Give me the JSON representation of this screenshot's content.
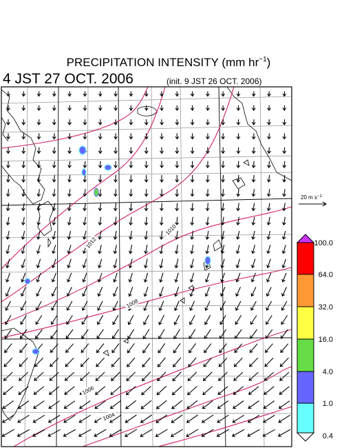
{
  "title": {
    "text": "PRECIPITATION INTENSITY (mm hr",
    "superscript": "−1",
    "close": ")"
  },
  "valid_time": "4 JST 27 OCT. 2006",
  "init_time": "(init. 9 JST 26 OCT. 2006)",
  "wind_reference": {
    "text": "20 m s",
    "superscript": "−1"
  },
  "isobar_labels": [
    "1012",
    "1010",
    "1008",
    "1006",
    "1004"
  ],
  "colorbar": {
    "labels": [
      "100.0",
      "64.0",
      "32.0",
      "16.0",
      "4.0",
      "1.0",
      "0.4"
    ]
  }
}
